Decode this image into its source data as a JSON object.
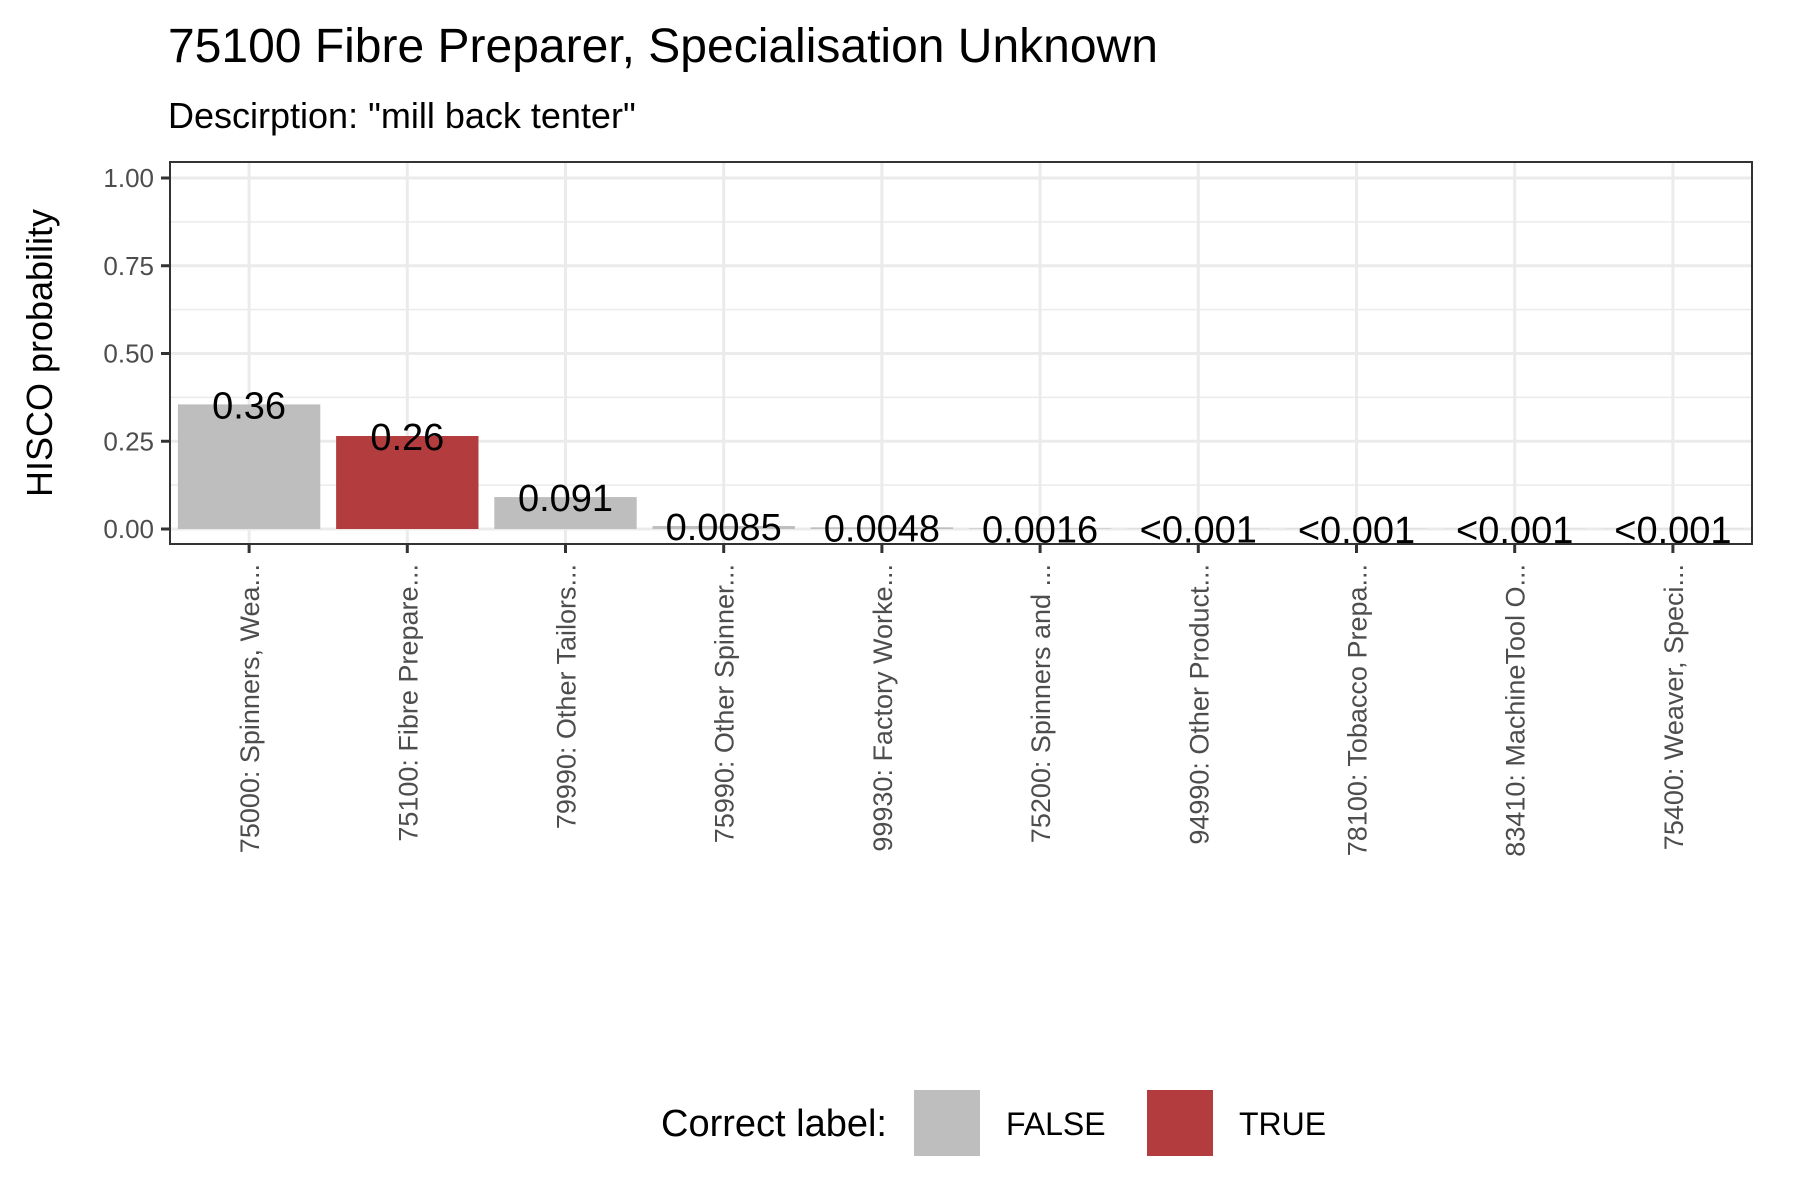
{
  "chart_data": {
    "type": "bar",
    "title": "75100 Fibre Preparer, Specialisation Unknown",
    "subtitle": "Descirption: \"mill back tenter\"",
    "xlabel": "",
    "ylabel": "HISCO probability",
    "ylim": [
      0,
      1.05
    ],
    "yticks": [
      0,
      0.25,
      0.5,
      0.75,
      1.0
    ],
    "ytick_labels": [
      "0.00",
      "0.25",
      "0.50",
      "0.75",
      "1.00"
    ],
    "grid": true,
    "legend_position": "bottom",
    "categories": [
      "75000: Spinners, Wea...",
      "75100: Fibre Prepare...",
      "79990: Other Tailors...",
      "75990: Other Spinner...",
      "99930: Factory Worke...",
      "75200: Spinners and ...",
      "94990: Other Product...",
      "78100: Tobacco Prepa...",
      "83410: MachineTool O...",
      "75400: Weaver, Speci..."
    ],
    "values": [
      0.355,
      0.265,
      0.091,
      0.0085,
      0.0048,
      0.0016,
      0.0008,
      0.0007,
      0.0006,
      0.0005
    ],
    "value_labels": [
      "0.36",
      "0.26",
      "0.091",
      "0.0085",
      "0.0048",
      "0.0016",
      "<0.001",
      "<0.001",
      "<0.001",
      "<0.001"
    ],
    "correct": [
      false,
      true,
      false,
      false,
      false,
      false,
      false,
      false,
      false,
      false
    ],
    "legend": {
      "title": "Correct label:",
      "entries": [
        {
          "label": "FALSE",
          "color": "#bebebe"
        },
        {
          "label": "TRUE",
          "color": "#b33c3e"
        }
      ]
    },
    "colors": {
      "false": "#bebebe",
      "true": "#b33c3e"
    }
  }
}
